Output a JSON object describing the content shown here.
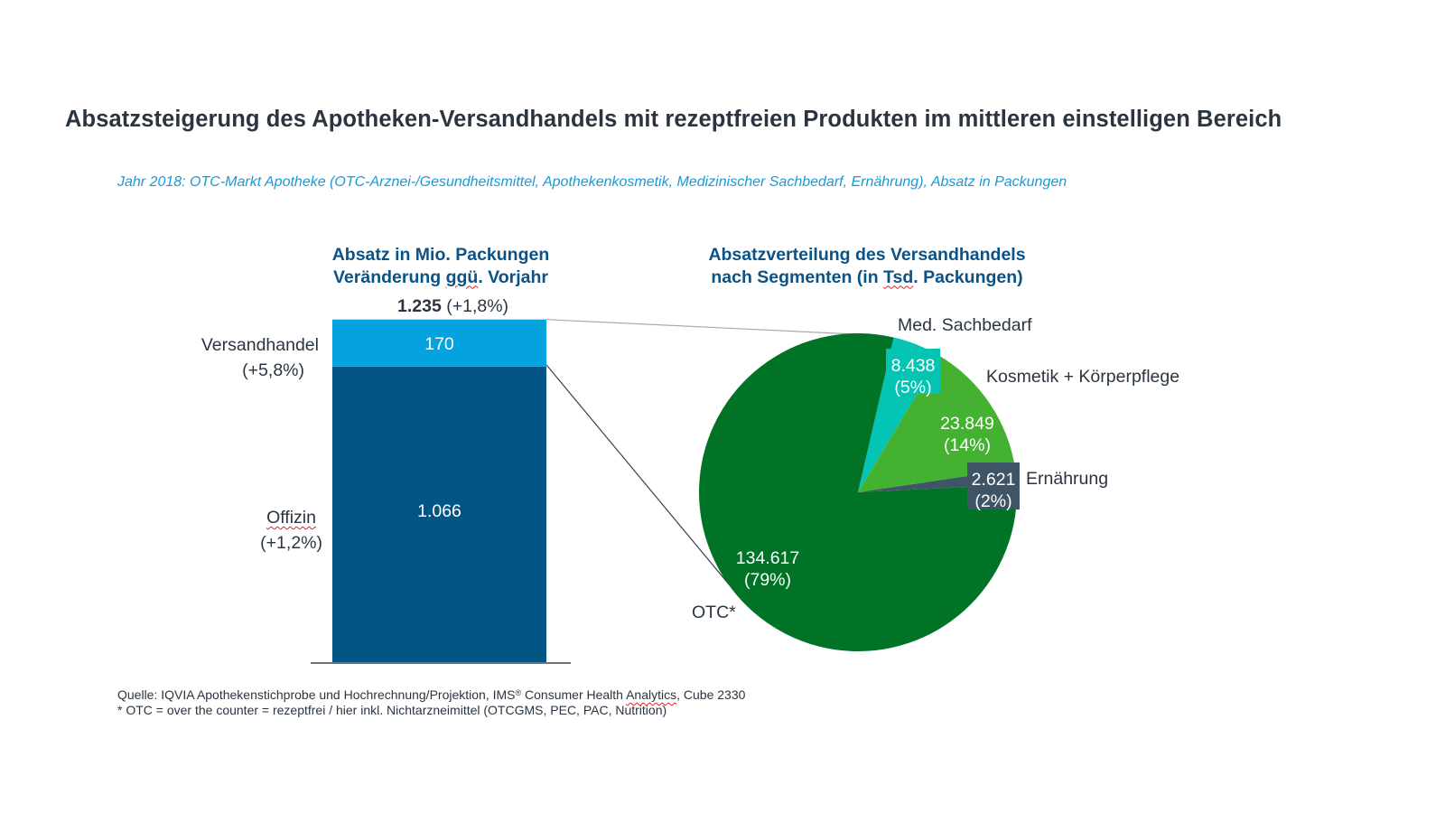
{
  "header": {
    "title": "Absatzsteigerung des Apotheken-Versandhandels mit rezeptfreien Produkten im mittleren einstelligen Bereich",
    "subtitle": "Jahr 2018: OTC-Markt Apotheke (OTC-Arznei-/Gesundheitsmittel, Apothekenkosmetik, Medizinischer Sachbedarf, Ernährung), Absatz in Packungen"
  },
  "colors": {
    "title": "#2b3541",
    "subtitle": "#1a9ad6",
    "chart_title": "#0b5286",
    "versandhandel": "#04a2df",
    "offizin": "#035586",
    "otc": "#017326",
    "med_sachbedarf": "#04c5b4",
    "kosmetik": "#45b130",
    "ernaehrung": "#3f5465"
  },
  "chart_data": [
    {
      "type": "bar",
      "stacked": true,
      "title_line1": "Absatz in Mio. Packungen",
      "title_line2_pre": "Veränderung ",
      "title_line2_flag": "ggü",
      "title_line2_post": ". Vorjahr",
      "unit": "Mio. Packungen",
      "total_value": "1.235",
      "total_change": "(+1,8%)",
      "total": 1235,
      "series": [
        {
          "name": "Offizin",
          "value": 1066,
          "value_label": "1.066",
          "change": "(+1,2%)"
        },
        {
          "name": "Versandhandel",
          "value": 170,
          "value_label": "170",
          "change": "(+5,8%)"
        }
      ],
      "ylim": [
        0,
        1235
      ]
    },
    {
      "type": "pie",
      "title_line1": "Absatzverteilung des Versandhandels",
      "title_line2_pre": "nach Segmenten (in ",
      "title_line2_flag": "Tsd",
      "title_line2_post": ". Packungen)",
      "unit": "Tsd. Packungen",
      "slices": [
        {
          "name": "Med. Sachbedarf",
          "value": 8438,
          "value_label": "8.438",
          "percent_label": "(5%)"
        },
        {
          "name": "Kosmetik + Körperpflege",
          "value": 23849,
          "value_label": "23.849",
          "percent_label": "(14%)"
        },
        {
          "name": "Ernährung",
          "value": 2621,
          "value_label": "2.621",
          "percent_label": "(2%)"
        },
        {
          "name": "OTC*",
          "value": 134617,
          "value_label": "134.617",
          "percent_label": "(79%)"
        }
      ]
    }
  ],
  "footnotes": {
    "source_pre": "Quelle: IQVIA Apothekenstichprobe und Hochrechnung/Projektion, IMS",
    "source_reg": "®",
    "source_mid": " Consumer Health ",
    "source_flag": "Analytics",
    "source_post": ", Cube 2330",
    "otc_note": "* OTC = over the counter = rezeptfrei / hier inkl. Nichtarzneimittel (OTCGMS, PEC, PAC, Nutrition)"
  }
}
